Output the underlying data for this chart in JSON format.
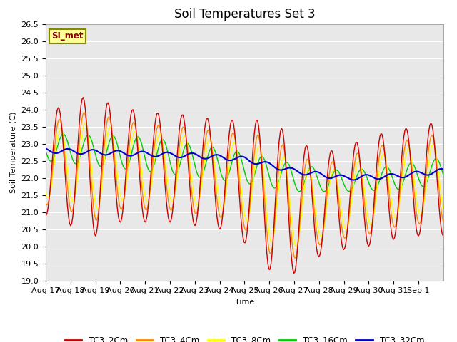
{
  "title": "Soil Temperatures Set 3",
  "xlabel": "Time",
  "ylabel": "Soil Temperature (C)",
  "ylim": [
    19.0,
    26.5
  ],
  "yticks": [
    19.0,
    19.5,
    20.0,
    20.5,
    21.0,
    21.5,
    22.0,
    22.5,
    23.0,
    23.5,
    24.0,
    24.5,
    25.0,
    25.5,
    26.0,
    26.5
  ],
  "series": {
    "TC3_2Cm": {
      "color": "#cc0000",
      "linewidth": 1.0
    },
    "TC3_4Cm": {
      "color": "#ff8800",
      "linewidth": 1.0
    },
    "TC3_8Cm": {
      "color": "#ffff00",
      "linewidth": 1.0
    },
    "TC3_16Cm": {
      "color": "#00cc00",
      "linewidth": 1.0
    },
    "TC3_32Cm": {
      "color": "#0000cc",
      "linewidth": 1.5
    }
  },
  "x_tick_labels": [
    "Aug 17",
    "Aug 18",
    "Aug 19",
    "Aug 20",
    "Aug 21",
    "Aug 22",
    "Aug 23",
    "Aug 24",
    "Aug 25",
    "Aug 26",
    "Aug 27",
    "Aug 28",
    "Aug 29",
    "Aug 30",
    "Aug 31",
    "Sep 1"
  ],
  "annotation": "SI_met",
  "plot_bg_color": "#e8e8e8",
  "grid_color": "#ffffff",
  "title_fontsize": 12,
  "label_fontsize": 8
}
